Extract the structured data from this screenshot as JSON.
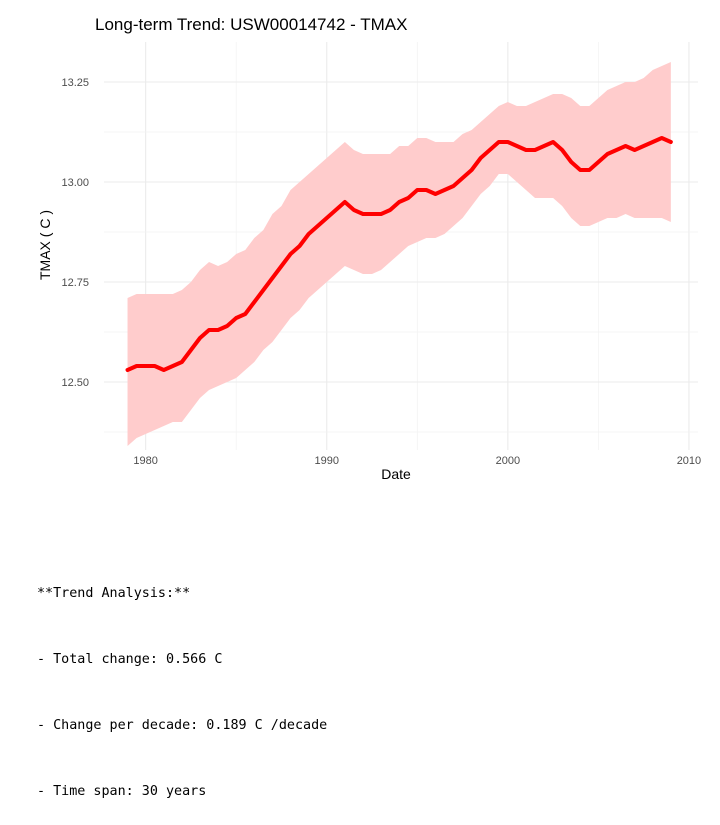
{
  "chart_data": {
    "type": "line",
    "title": "Long-term Trend: USW00014742 - TMAX",
    "xlabel": "Date",
    "ylabel": "TMAX ( C )",
    "xlim": [
      1977.7,
      2010.5
    ],
    "ylim": [
      12.33,
      13.35
    ],
    "x_ticks": [
      1980,
      1990,
      2000,
      2010
    ],
    "x_tick_labels": [
      "1980",
      "1990",
      "2000",
      "2010"
    ],
    "y_ticks": [
      12.5,
      12.75,
      13.0,
      13.25
    ],
    "y_tick_labels": [
      "12.50",
      "12.75",
      "13.00",
      "13.25"
    ],
    "grid": true,
    "line_color": "#ff0000",
    "band_color": "#ffcccc",
    "series": [
      {
        "x": [
          1979.0,
          1979.5,
          1980.0,
          1980.5,
          1981.0,
          1981.5,
          1982.0,
          1982.5,
          1983.0,
          1983.5,
          1984.0,
          1984.5,
          1985.0,
          1985.5,
          1986.0,
          1986.5,
          1987.0,
          1987.5,
          1988.0,
          1988.5,
          1989.0,
          1989.5,
          1990.0,
          1990.5,
          1991.0,
          1991.5,
          1992.0,
          1992.5,
          1993.0,
          1993.5,
          1994.0,
          1994.5,
          1995.0,
          1995.5,
          1996.0,
          1996.5,
          1997.0,
          1997.5,
          1998.0,
          1998.5,
          1999.0,
          1999.5,
          2000.0,
          2000.5,
          2001.0,
          2001.5,
          2002.0,
          2002.5,
          2003.0,
          2003.5,
          2004.0,
          2004.5,
          2005.0,
          2005.5,
          2006.0,
          2006.5,
          2007.0,
          2007.5,
          2008.0,
          2008.5,
          2009.0
        ],
        "values": [
          12.53,
          12.54,
          12.54,
          12.54,
          12.53,
          12.54,
          12.55,
          12.58,
          12.61,
          12.63,
          12.63,
          12.64,
          12.66,
          12.67,
          12.7,
          12.73,
          12.76,
          12.79,
          12.82,
          12.84,
          12.87,
          12.89,
          12.91,
          12.93,
          12.95,
          12.93,
          12.92,
          12.92,
          12.92,
          12.93,
          12.95,
          12.96,
          12.98,
          12.98,
          12.97,
          12.98,
          12.99,
          13.01,
          13.03,
          13.06,
          13.08,
          13.1,
          13.1,
          13.09,
          13.08,
          13.08,
          13.09,
          13.1,
          13.08,
          13.05,
          13.03,
          13.03,
          13.05,
          13.07,
          13.08,
          13.09,
          13.08,
          13.09,
          13.1,
          13.11,
          13.1
        ],
        "lower": [
          12.34,
          12.36,
          12.37,
          12.38,
          12.39,
          12.4,
          12.4,
          12.43,
          12.46,
          12.48,
          12.49,
          12.5,
          12.51,
          12.53,
          12.55,
          12.58,
          12.6,
          12.63,
          12.66,
          12.68,
          12.71,
          12.73,
          12.75,
          12.77,
          12.79,
          12.78,
          12.77,
          12.77,
          12.78,
          12.8,
          12.82,
          12.84,
          12.85,
          12.86,
          12.86,
          12.87,
          12.89,
          12.91,
          12.94,
          12.97,
          12.99,
          13.02,
          13.02,
          13.0,
          12.98,
          12.96,
          12.96,
          12.96,
          12.94,
          12.91,
          12.89,
          12.89,
          12.9,
          12.91,
          12.91,
          12.92,
          12.91,
          12.91,
          12.91,
          12.91,
          12.9
        ],
        "upper": [
          12.71,
          12.72,
          12.72,
          12.72,
          12.72,
          12.72,
          12.73,
          12.75,
          12.78,
          12.8,
          12.79,
          12.8,
          12.82,
          12.83,
          12.86,
          12.88,
          12.92,
          12.94,
          12.98,
          13.0,
          13.02,
          13.04,
          13.06,
          13.08,
          13.1,
          13.08,
          13.07,
          13.07,
          13.07,
          13.07,
          13.09,
          13.09,
          13.11,
          13.11,
          13.1,
          13.1,
          13.1,
          13.12,
          13.13,
          13.15,
          13.17,
          13.19,
          13.2,
          13.19,
          13.19,
          13.2,
          13.21,
          13.22,
          13.22,
          13.21,
          13.19,
          13.19,
          13.21,
          13.23,
          13.24,
          13.25,
          13.25,
          13.26,
          13.28,
          13.29,
          13.3
        ]
      }
    ]
  },
  "summary": {
    "heading": "**Trend Analysis:**",
    "total_change": "- Total change: 0.566 C",
    "change_per_decade": "- Change per decade: 0.189 C /decade",
    "time_span": "- Time span: 30 years"
  }
}
